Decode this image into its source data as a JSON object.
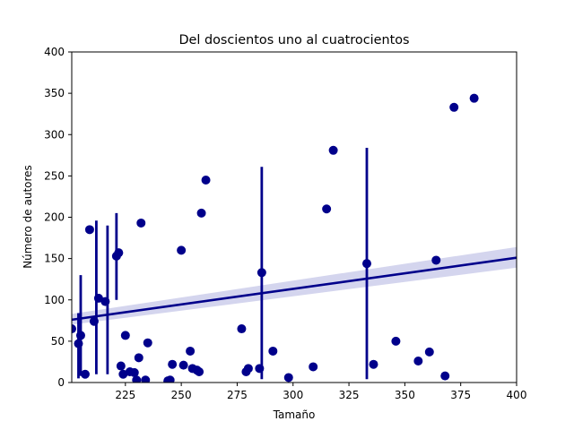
{
  "chart_data": {
    "type": "scatter",
    "title": "Del doscientos uno al cuatrocientos",
    "xlabel": "Tamaño",
    "ylabel": "Número de autores",
    "xlim": [
      201,
      400
    ],
    "ylim": [
      0,
      400
    ],
    "xticks": [
      225,
      250,
      275,
      300,
      325,
      350,
      375,
      400
    ],
    "yticks": [
      0,
      50,
      100,
      150,
      200,
      250,
      300,
      350,
      400
    ],
    "grid": false,
    "colors": {
      "points": "#00008b",
      "line": "#00008b",
      "band": "#c5c7e8"
    },
    "points": [
      [
        201,
        65
      ],
      [
        204,
        47
      ],
      [
        205,
        57
      ],
      [
        207,
        10
      ],
      [
        209,
        185
      ],
      [
        211,
        74
      ],
      [
        213,
        102
      ],
      [
        216,
        98
      ],
      [
        221,
        153
      ],
      [
        222,
        157
      ],
      [
        223,
        20
      ],
      [
        224,
        10
      ],
      [
        225,
        57
      ],
      [
        227,
        13
      ],
      [
        229,
        12
      ],
      [
        230,
        3
      ],
      [
        231,
        30
      ],
      [
        232,
        193
      ],
      [
        234,
        3
      ],
      [
        235,
        48
      ],
      [
        244,
        2
      ],
      [
        245,
        3
      ],
      [
        246,
        22
      ],
      [
        250,
        160
      ],
      [
        251,
        21
      ],
      [
        254,
        38
      ],
      [
        255,
        17
      ],
      [
        257,
        15
      ],
      [
        259,
        205
      ],
      [
        258,
        13
      ],
      [
        261,
        245
      ],
      [
        277,
        65
      ],
      [
        279,
        13
      ],
      [
        280,
        17
      ],
      [
        286,
        133
      ],
      [
        285,
        17
      ],
      [
        291,
        38
      ],
      [
        298,
        6
      ],
      [
        309,
        19
      ],
      [
        315,
        210
      ],
      [
        318,
        281
      ],
      [
        333,
        144
      ],
      [
        336,
        22
      ],
      [
        346,
        50
      ],
      [
        356,
        26
      ],
      [
        361,
        37
      ],
      [
        364,
        148
      ],
      [
        368,
        8
      ],
      [
        372,
        333
      ],
      [
        381,
        344
      ]
    ],
    "error_bars": [
      {
        "x": 204,
        "low": 5,
        "high": 84
      },
      {
        "x": 205,
        "low": 8,
        "high": 130
      },
      {
        "x": 212,
        "low": 10,
        "high": 196
      },
      {
        "x": 217,
        "low": 10,
        "high": 190
      },
      {
        "x": 221,
        "low": 100,
        "high": 205
      },
      {
        "x": 286,
        "low": 4,
        "high": 261
      },
      {
        "x": 333,
        "low": 4,
        "high": 284
      }
    ],
    "regression": {
      "x": [
        201,
        400
      ],
      "y": [
        76,
        151
      ],
      "ci_low": [
        70,
        139
      ],
      "ci_high": [
        83,
        164
      ]
    }
  }
}
